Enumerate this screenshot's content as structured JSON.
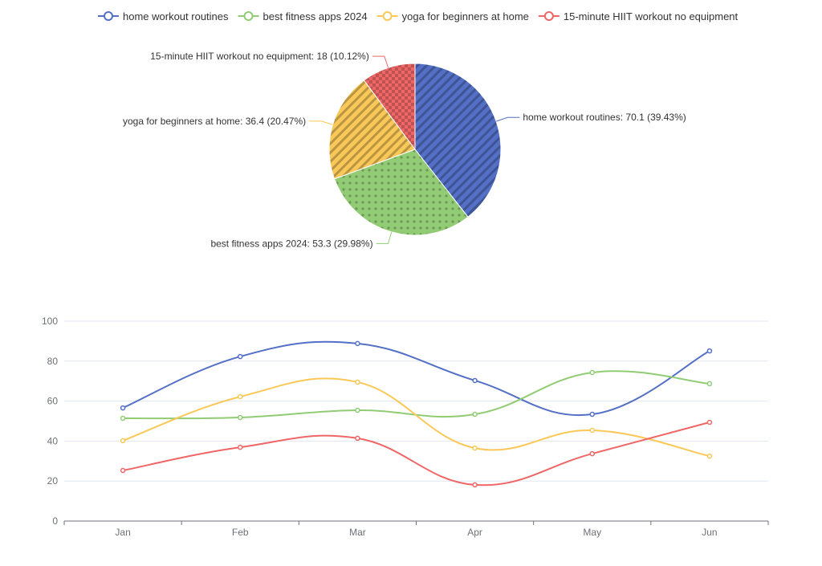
{
  "chart_data": [
    {
      "type": "pie",
      "legend_position": "top",
      "slices": [
        {
          "name": "home workout routines",
          "value": 70.1,
          "percent": "39.43%",
          "color": "#5470c6",
          "pattern": "diagonal-stripes"
        },
        {
          "name": "best fitness apps 2024",
          "value": 53.3,
          "percent": "29.98%",
          "color": "#91cc75",
          "pattern": "dots"
        },
        {
          "name": "yoga for beginners at home",
          "value": 36.4,
          "percent": "20.47%",
          "color": "#fac858",
          "pattern": "diagonal-stripes"
        },
        {
          "name": "15-minute HIIT workout no equipment",
          "value": 18,
          "percent": "10.12%",
          "color": "#ee6666",
          "pattern": "checker"
        }
      ]
    },
    {
      "type": "line",
      "smooth": true,
      "grid": true,
      "categories": [
        "Jan",
        "Feb",
        "Mar",
        "Apr",
        "May",
        "Jun"
      ],
      "ylim": [
        0,
        100
      ],
      "yticks": [
        0,
        20,
        40,
        60,
        80,
        100
      ],
      "series": [
        {
          "name": "home workout routines",
          "color": "#5470c6",
          "values": [
            56.6,
            82.3,
            88.8,
            70.3,
            53.4,
            85.1
          ]
        },
        {
          "name": "best fitness apps 2024",
          "color": "#91cc75",
          "values": [
            51.4,
            51.8,
            55.4,
            53.4,
            74.3,
            68.7
          ]
        },
        {
          "name": "yoga for beginners at home",
          "color": "#fac858",
          "values": [
            40.2,
            62.2,
            69.5,
            36.5,
            45.4,
            32.5
          ]
        },
        {
          "name": "15-minute HIIT workout no equipment",
          "color": "#ee6666",
          "values": [
            25.3,
            36.9,
            41.4,
            18.1,
            33.7,
            49.4
          ]
        }
      ]
    }
  ]
}
